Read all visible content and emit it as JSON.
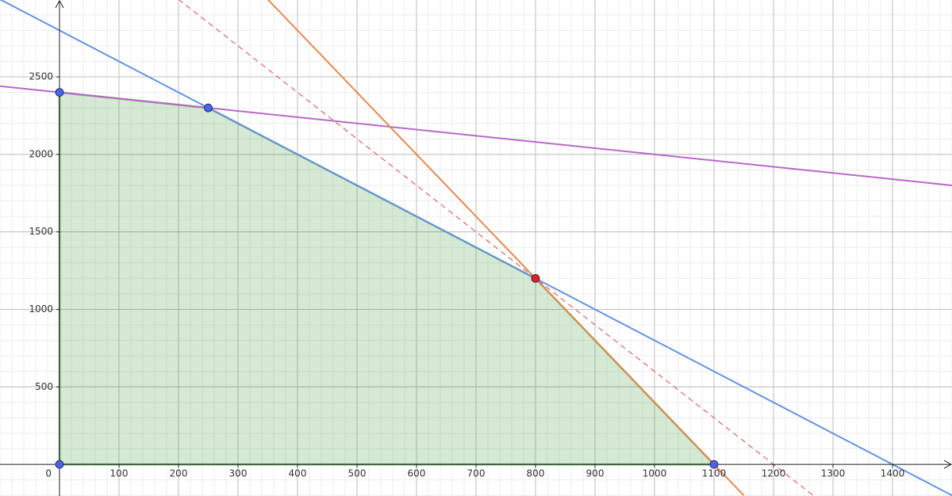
{
  "chart_data": {
    "type": "line",
    "xlim": [
      -100,
      1500
    ],
    "ylim": [
      -204,
      2996
    ],
    "xticks": [
      0,
      100,
      200,
      300,
      400,
      500,
      600,
      700,
      800,
      900,
      1000,
      1100,
      1200,
      1300,
      1400
    ],
    "yticks": [
      500,
      1000,
      1500,
      2000,
      2500
    ],
    "grid": true,
    "minor_grid": true,
    "series": [
      {
        "style": "polygon",
        "color": "#3f9a3f",
        "x": [
          0,
          0,
          250,
          800,
          1100
        ],
        "values": [
          0,
          2400,
          2300,
          1200,
          0
        ]
      },
      {
        "style": "line",
        "color": "#6495dd",
        "x": [
          -100,
          1500
        ],
        "values": [
          3000,
          -200
        ]
      },
      {
        "style": "line",
        "color": "#b86ac6",
        "x": [
          -100,
          1500
        ],
        "values": [
          2440,
          1800
        ]
      },
      {
        "style": "line",
        "color": "#e38a50",
        "x": [
          350,
          1150
        ],
        "values": [
          3000,
          -200
        ]
      },
      {
        "style": "dashed",
        "color": "#e06464",
        "x": [
          200,
          1266.7
        ],
        "values": [
          3000,
          -200
        ]
      },
      {
        "style": "points",
        "color": "#4a63e8",
        "x": [
          0,
          250,
          0,
          1100
        ],
        "values": [
          2400,
          2300,
          0,
          0
        ]
      },
      {
        "style": "points",
        "color": "#e02020",
        "x": [
          800
        ],
        "values": [
          1200
        ]
      }
    ]
  }
}
